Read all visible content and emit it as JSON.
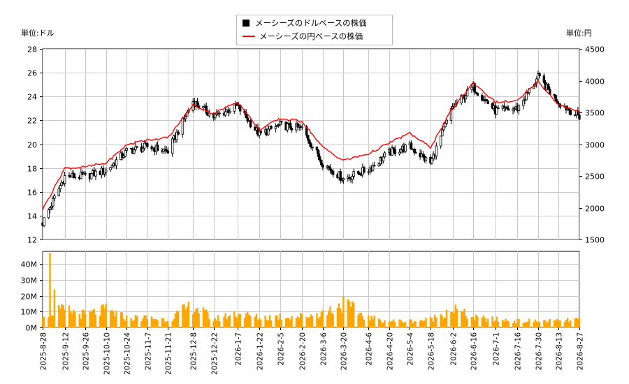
{
  "legend": {
    "usd_label": "メーシーズのドルベースの株価",
    "jpy_label": "メーシーズの円ベースの株価"
  },
  "units": {
    "left": "単位:ドル",
    "right": "単位:円"
  },
  "colors": {
    "usd": "#000000",
    "jpy": "#ff0000",
    "volume": "#ffa500",
    "grid": "#c8c8c8"
  },
  "chart_data": [
    {
      "type": "line",
      "name": "price",
      "ylim_left": [
        12,
        28
      ],
      "yticks_left": [
        12,
        14,
        16,
        18,
        20,
        22,
        24,
        26,
        28
      ],
      "ylim_right": [
        1500,
        4500
      ],
      "yticks_right": [
        1500,
        2000,
        2500,
        3000,
        3500,
        4000,
        4500
      ],
      "grid": true,
      "legend_position": "top-center",
      "x": [
        "2025-08-28",
        "2025-09-12",
        "2025-09-26",
        "2025-10-10",
        "2025-10-24",
        "2025-11-07",
        "2025-11-21",
        "2025-12-08",
        "2025-12-22",
        "2026-01-07",
        "2026-01-22",
        "2026-02-05",
        "2026-02-20",
        "2026-03-06",
        "2026-03-20",
        "2026-04-06",
        "2026-04-20",
        "2026-05-04",
        "2026-05-18",
        "2026-06-02",
        "2026-06-16",
        "2026-07-01",
        "2026-07-16",
        "2026-07-30",
        "2026-08-13",
        "2026-08-27"
      ],
      "series": [
        {
          "name": "メーシーズのドルベースの株価",
          "axis": "left",
          "values": [
            13.4,
            17.3,
            17.3,
            17.8,
            19.4,
            19.8,
            19.4,
            23.6,
            22.3,
            23.2,
            20.8,
            21.6,
            21.3,
            18.4,
            17.1,
            17.9,
            19.3,
            19.8,
            18.4,
            23.1,
            24.8,
            22.8,
            23.0,
            25.6,
            23.5,
            22.3
          ]
        },
        {
          "name": "メーシーズの円ベースの株価",
          "axis": "right",
          "values": [
            1970,
            2620,
            2640,
            2700,
            2990,
            3070,
            3100,
            3620,
            3480,
            3670,
            3230,
            3400,
            3360,
            2950,
            2740,
            2850,
            3020,
            3170,
            2950,
            3560,
            3970,
            3660,
            3680,
            3990,
            3620,
            3500
          ]
        }
      ]
    },
    {
      "type": "bar",
      "name": "volume",
      "ylim": [
        0,
        48
      ],
      "yticks": [
        0,
        10,
        20,
        30,
        40
      ],
      "ytick_labels": [
        "0M",
        "10M",
        "20M",
        "30M",
        "40M"
      ],
      "x": [
        "2025-08-28",
        "2025-09-12",
        "2025-09-26",
        "2025-10-10",
        "2025-10-24",
        "2025-11-07",
        "2025-11-21",
        "2025-12-08",
        "2025-12-22",
        "2026-01-07",
        "2026-01-22",
        "2026-02-05",
        "2026-02-20",
        "2026-03-06",
        "2026-03-20",
        "2026-04-06",
        "2026-04-20",
        "2026-05-04",
        "2026-05-18",
        "2026-06-02",
        "2026-06-16",
        "2026-07-01",
        "2026-07-16",
        "2026-07-30",
        "2026-08-13",
        "2026-08-27"
      ],
      "values": [
        9,
        11,
        8,
        11,
        6,
        6,
        5,
        14,
        5,
        9,
        6,
        7,
        7,
        9,
        15,
        6,
        4,
        4,
        5,
        12,
        6,
        5,
        4,
        4,
        4,
        5
      ]
    }
  ],
  "xtick_labels": [
    "2025-8-28",
    "2025-9-12",
    "2025-9-26",
    "2025-10-10",
    "2025-10-24",
    "2025-11-7",
    "2025-11-21",
    "2025-12-8",
    "2025-12-22",
    "2026-1-7",
    "2026-1-22",
    "2026-2-5",
    "2026-2-20",
    "2026-3-6",
    "2026-3-20",
    "2026-4-6",
    "2026-4-20",
    "2026-5-4",
    "2026-5-18",
    "2026-6-2",
    "2026-6-16",
    "2026-7-1",
    "2026-7-16",
    "2026-7-30",
    "2026-8-13",
    "2026-8-27"
  ]
}
